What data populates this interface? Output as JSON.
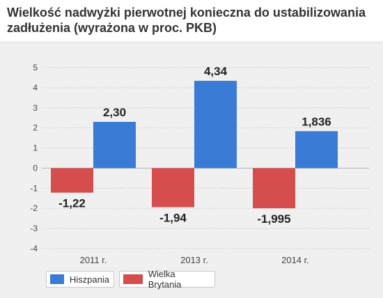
{
  "header": {
    "title": "Wielkość nadwyżki pierwotnej konieczna do ustabilizowania zadłużenia (wyrażona w proc. PKB)"
  },
  "colors": {
    "Hiszpania": "#3a7bd5",
    "Wielka Brytania": "#d64d4d",
    "grid": "#cfcfcf",
    "axis_text": "#444444",
    "label_text": "#222222"
  },
  "chart_data": {
    "type": "bar",
    "title": "Wielkość nadwyżki pierwotnej konieczna do ustabilizowania zadłużenia (wyrażona w proc. PKB)",
    "categories": [
      "2011 r.",
      "2013 r.",
      "2014 r."
    ],
    "series": [
      {
        "name": "Wielka Brytania",
        "values": [
          -1.22,
          -1.94,
          -1.995
        ],
        "labels": [
          "-1,22",
          "-1,94",
          "-1,995"
        ]
      },
      {
        "name": "Hiszpania",
        "values": [
          2.3,
          4.34,
          1.836
        ],
        "labels": [
          "2,30",
          "4,34",
          "1,836"
        ]
      }
    ],
    "ylim": [
      -4,
      5
    ],
    "yticks": [
      5,
      4,
      3,
      2,
      1,
      0,
      -1,
      -2,
      -3,
      -4
    ],
    "ytick_labels": [
      "5",
      "4",
      "3",
      "2",
      "1",
      "0",
      "-1",
      "-2",
      "-3",
      "-4"
    ],
    "grid": true,
    "legend_position": "bottom-left",
    "legend": [
      "Hiszpania",
      "Wielka Brytania"
    ]
  }
}
